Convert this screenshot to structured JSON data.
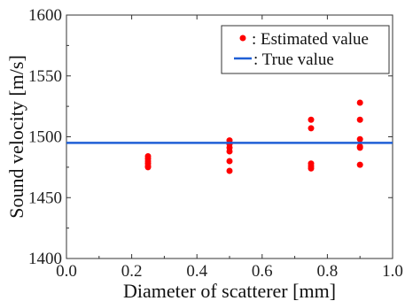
{
  "chart_data": {
    "type": "scatter",
    "xlabel": "Diameter of scatterer [mm]",
    "ylabel": "Sound velocity [m/s]",
    "xlim": [
      0.0,
      1.0
    ],
    "ylim": [
      1400,
      1600
    ],
    "x_ticks": [
      "0.0",
      "0.2",
      "0.4",
      "0.6",
      "0.8",
      "1.0"
    ],
    "y_ticks": [
      "1400",
      "1450",
      "1500",
      "1550",
      "1600"
    ],
    "x_tick_values": [
      0.0,
      0.2,
      0.4,
      0.6,
      0.8,
      1.0
    ],
    "y_tick_values": [
      1400,
      1450,
      1500,
      1550,
      1600
    ],
    "grid": false,
    "legend_position": "top-right",
    "series": [
      {
        "name": ": Estimated value",
        "kind": "points",
        "color": "#ff0000",
        "x": [
          0.25,
          0.25,
          0.25,
          0.25,
          0.25,
          0.25,
          0.5,
          0.5,
          0.5,
          0.5,
          0.5,
          0.5,
          0.75,
          0.75,
          0.75,
          0.75,
          0.75,
          0.9,
          0.9,
          0.9,
          0.9,
          0.9,
          0.9
        ],
        "y": [
          1484,
          1482,
          1480,
          1478,
          1476,
          1475,
          1497,
          1494,
          1491,
          1488,
          1480,
          1472,
          1514,
          1507,
          1478,
          1476,
          1474,
          1528,
          1514,
          1498,
          1492,
          1491,
          1477
        ]
      },
      {
        "name": ": True value",
        "kind": "hline",
        "color": "#1f5fd6",
        "y": 1495
      }
    ]
  }
}
